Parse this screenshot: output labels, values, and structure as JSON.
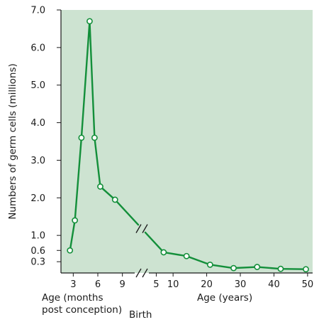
{
  "chart_data": {
    "type": "line",
    "ylabel": "Numbers of germ cells (millions)",
    "ylim": [
      0,
      7.0
    ],
    "yticks": [
      {
        "value": 0.3,
        "label": "0.3"
      },
      {
        "value": 0.6,
        "label": "0.6"
      },
      {
        "value": 1.0,
        "label": "1.0"
      },
      {
        "value": 2.0,
        "label": "2.0"
      },
      {
        "value": 3.0,
        "label": "3.0"
      },
      {
        "value": 4.0,
        "label": "4.0"
      },
      {
        "value": 5.0,
        "label": "5.0"
      },
      {
        "value": 6.0,
        "label": "6.0"
      },
      {
        "value": 7.0,
        "label": "7.0"
      }
    ],
    "x_segments": [
      {
        "unit": "months post conception",
        "xlim": [
          1.5,
          10.5
        ],
        "ticks": [
          {
            "value": 3,
            "label": "3"
          },
          {
            "value": 6,
            "label": "6"
          },
          {
            "value": 9,
            "label": "9"
          }
        ],
        "axis_label": "Age (months\npost conception)"
      },
      {
        "unit": "years",
        "xlim": [
          2.8,
          51.5
        ],
        "ticks": [
          {
            "value": 5,
            "label": "5"
          },
          {
            "value": 10,
            "label": "10"
          },
          {
            "value": 20,
            "label": "20"
          },
          {
            "value": 30,
            "label": "30"
          },
          {
            "value": 40,
            "label": "40"
          },
          {
            "value": 50,
            "label": "50"
          }
        ],
        "axis_label": "Age (years)"
      }
    ],
    "birth_label": "Birth",
    "series": [
      {
        "prenatal_points": [
          {
            "x": 2.6,
            "y": 0.6
          },
          {
            "x": 3.2,
            "y": 1.4
          },
          {
            "x": 4.0,
            "y": 3.6
          },
          {
            "x": 5.0,
            "y": 6.7
          },
          {
            "x": 5.6,
            "y": 3.6
          },
          {
            "x": 6.3,
            "y": 2.3
          },
          {
            "x": 8.1,
            "y": 1.95
          }
        ],
        "postnatal_points": [
          {
            "x": 7.2,
            "y": 0.55
          },
          {
            "x": 14.0,
            "y": 0.45
          },
          {
            "x": 21.0,
            "y": 0.22
          },
          {
            "x": 28.0,
            "y": 0.13
          },
          {
            "x": 35.0,
            "y": 0.16
          },
          {
            "x": 42.0,
            "y": 0.11
          },
          {
            "x": 49.5,
            "y": 0.1
          }
        ]
      }
    ],
    "colors": {
      "plot_background": "#cde3d1",
      "line": "#138f3a",
      "marker_fill": "#ffffff",
      "axis": "#1a1a1a"
    }
  }
}
